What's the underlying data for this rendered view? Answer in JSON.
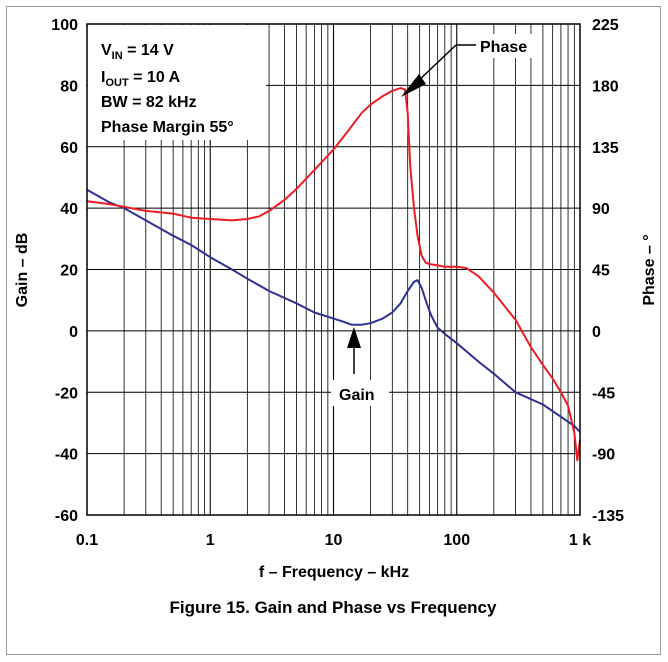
{
  "chart_data": {
    "type": "line",
    "title": "Figure 15. Gain and Phase vs Frequency",
    "xlabel": "f – Frequency – kHz",
    "ylabel_left": "Gain – dB",
    "ylabel_right": "Phase – °",
    "x_scale": "log",
    "xlim": [
      0.1,
      1000
    ],
    "ylim_left": [
      -60,
      100
    ],
    "ylim_right": [
      -135,
      225
    ],
    "x_ticks": [
      {
        "value": 0.1,
        "label": "0.1"
      },
      {
        "value": 1,
        "label": "1"
      },
      {
        "value": 10,
        "label": "10"
      },
      {
        "value": 100,
        "label": "100"
      },
      {
        "value": 1000,
        "label": "1 k"
      }
    ],
    "y_ticks_left": [
      "100",
      "80",
      "60",
      "40",
      "20",
      "0",
      "-20",
      "-40",
      "-60"
    ],
    "y_ticks_right": [
      "225",
      "180",
      "135",
      "90",
      "45",
      "0",
      "-45",
      "-90",
      "-135"
    ],
    "grid": true,
    "annotations": {
      "conditions": {
        "vin_main": "V",
        "vin_sub": "IN",
        "vin_rest": " = 14 V",
        "iout_main": "I",
        "iout_sub": "OUT",
        "iout_rest": " = 10 A",
        "bw": "BW = 82 kHz",
        "pm": "Phase Margin 55°"
      },
      "phase_label": "Phase",
      "gain_label": "Gain"
    },
    "series": [
      {
        "name": "Gain",
        "axis": "left",
        "color": "#2e3192",
        "x": [
          0.1,
          0.15,
          0.2,
          0.3,
          0.5,
          0.7,
          1,
          1.5,
          2,
          3,
          5,
          7,
          10,
          12,
          14,
          17,
          20,
          25,
          30,
          35,
          40,
          45,
          48,
          52,
          57,
          62,
          70,
          80,
          100,
          150,
          200,
          300,
          500,
          700,
          900,
          1000
        ],
        "y": [
          46,
          42,
          40,
          36,
          31,
          28,
          24,
          20,
          17,
          13,
          9,
          6,
          4,
          3,
          2,
          2,
          2.5,
          4,
          6,
          9,
          13,
          16,
          16.5,
          14,
          9,
          5,
          1,
          -1,
          -4,
          -10,
          -14,
          -20,
          -24,
          -28,
          -31,
          -33
        ]
      },
      {
        "name": "Phase",
        "axis": "right",
        "color": "#ed1c24",
        "x": [
          0.1,
          0.15,
          0.2,
          0.3,
          0.5,
          0.7,
          1,
          1.5,
          2,
          2.5,
          3,
          4,
          5,
          7,
          10,
          13,
          17,
          20,
          25,
          30,
          35,
          38,
          40,
          42,
          45,
          48,
          52,
          56,
          60,
          70,
          80,
          100,
          120,
          150,
          200,
          300,
          400,
          500,
          600,
          700,
          800,
          850,
          900,
          950,
          1000
        ],
        "y": [
          95,
          93,
          91,
          88,
          86,
          83,
          82,
          81,
          82,
          84,
          88,
          96,
          104,
          118,
          133,
          146,
          160,
          166,
          172,
          176,
          178,
          177,
          160,
          120,
          90,
          70,
          55,
          50,
          49,
          48,
          47,
          47,
          46,
          40,
          28,
          8,
          -12,
          -25,
          -35,
          -45,
          -55,
          -65,
          -75,
          -95,
          -80
        ]
      }
    ]
  }
}
